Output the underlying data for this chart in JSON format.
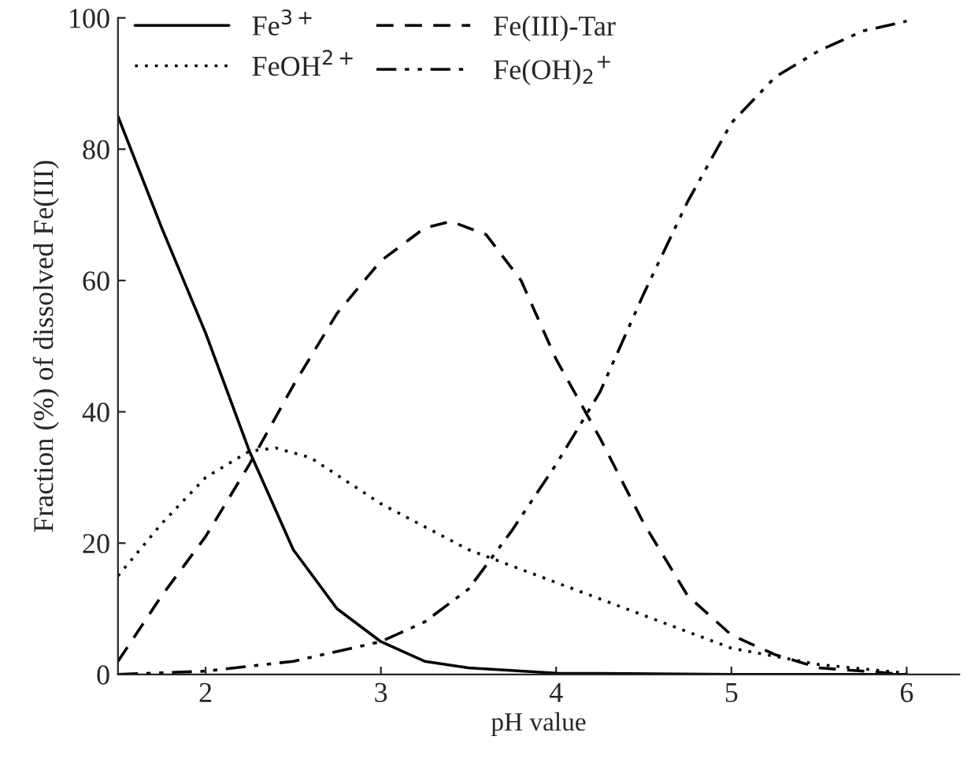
{
  "chart_data": {
    "type": "line",
    "xlabel": "pH value",
    "ylabel": "Fraction (%) of dissolved Fe(III)",
    "xlim": [
      1.5,
      6.3
    ],
    "ylim": [
      0,
      100
    ],
    "xticks": [
      2,
      3,
      4,
      5,
      6
    ],
    "yticks": [
      0,
      20,
      40,
      60,
      80,
      100
    ],
    "grid": false,
    "legend": "top left",
    "marker": "none",
    "series": [
      {
        "name": "Fe$^{3+}$",
        "color": "#000000",
        "line_style": "solid",
        "x": [
          1.5,
          1.75,
          2,
          2.25,
          2.5,
          2.75,
          3,
          3.25,
          3.5,
          4,
          5,
          6
        ],
        "values": [
          85,
          68,
          52,
          34,
          19,
          10,
          5,
          2,
          1,
          0.2,
          0,
          0
        ]
      },
      {
        "name": "FeOH$^{2+}$",
        "color": "#000000",
        "line_style": "dotted",
        "x": [
          1.5,
          1.75,
          2,
          2.25,
          2.4,
          2.6,
          3,
          3.5,
          4,
          4.5,
          5,
          5.5,
          6
        ],
        "values": [
          15,
          23,
          30,
          34,
          34.5,
          33,
          26,
          19,
          14,
          9,
          4,
          1.5,
          0.2
        ]
      },
      {
        "name": "Fe(III)-Tar",
        "color": "#000000",
        "line_style": "dashed",
        "x": [
          1.5,
          1.75,
          2,
          2.25,
          2.5,
          2.75,
          3,
          3.25,
          3.4,
          3.6,
          3.8,
          4,
          4.25,
          4.5,
          4.75,
          5,
          5.25,
          5.5,
          6
        ],
        "values": [
          2,
          12,
          21,
          32,
          44,
          55,
          63,
          68,
          69,
          67,
          60,
          48,
          36,
          23,
          12,
          6,
          3,
          1,
          0
        ]
      },
      {
        "name": "Fe(OH)$_{2}$$^{+}$",
        "color": "#000000",
        "line_style": "dashdotdot",
        "x": [
          1.5,
          2,
          2.5,
          3,
          3.25,
          3.5,
          3.75,
          4,
          4.25,
          4.5,
          4.75,
          5,
          5.25,
          5.5,
          5.75,
          6
        ],
        "values": [
          0,
          0.5,
          2,
          5,
          8,
          13,
          22,
          32,
          43,
          58,
          72,
          84,
          91,
          95,
          98,
          99.5
        ]
      }
    ]
  }
}
